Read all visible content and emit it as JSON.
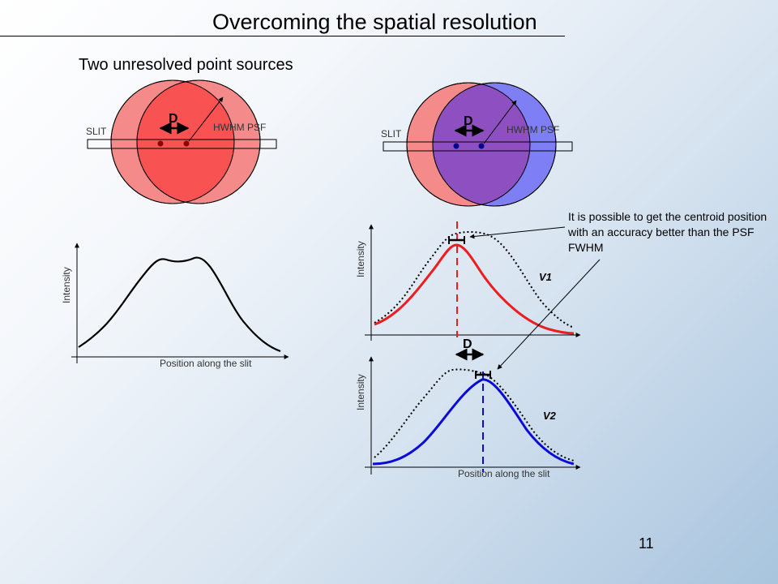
{
  "slide": {
    "title": "Overcoming the spatial resolution",
    "subtitle": "Two unresolved point sources",
    "slide_number": "11",
    "annotation": "It is possible to get the centroid position with an accuracy better than the PSF FWHM"
  },
  "labels": {
    "d": "D",
    "slit": "SLIT",
    "hwhm_psf": "HWHM PSF",
    "intensity": "Intensity",
    "position": "Position along the slit",
    "v1": "V1",
    "v2": "V2"
  },
  "colors": {
    "red_source": "#f48a8a",
    "red_overlap": "#f95252",
    "blue_source": "#7f7ff5",
    "purple_overlap": "#8e4fc0",
    "red_curve": "#ee1c1c",
    "blue_curve": "#0b0bd6",
    "dot_red": "#8b0000",
    "dot_blue": "#00008b"
  }
}
